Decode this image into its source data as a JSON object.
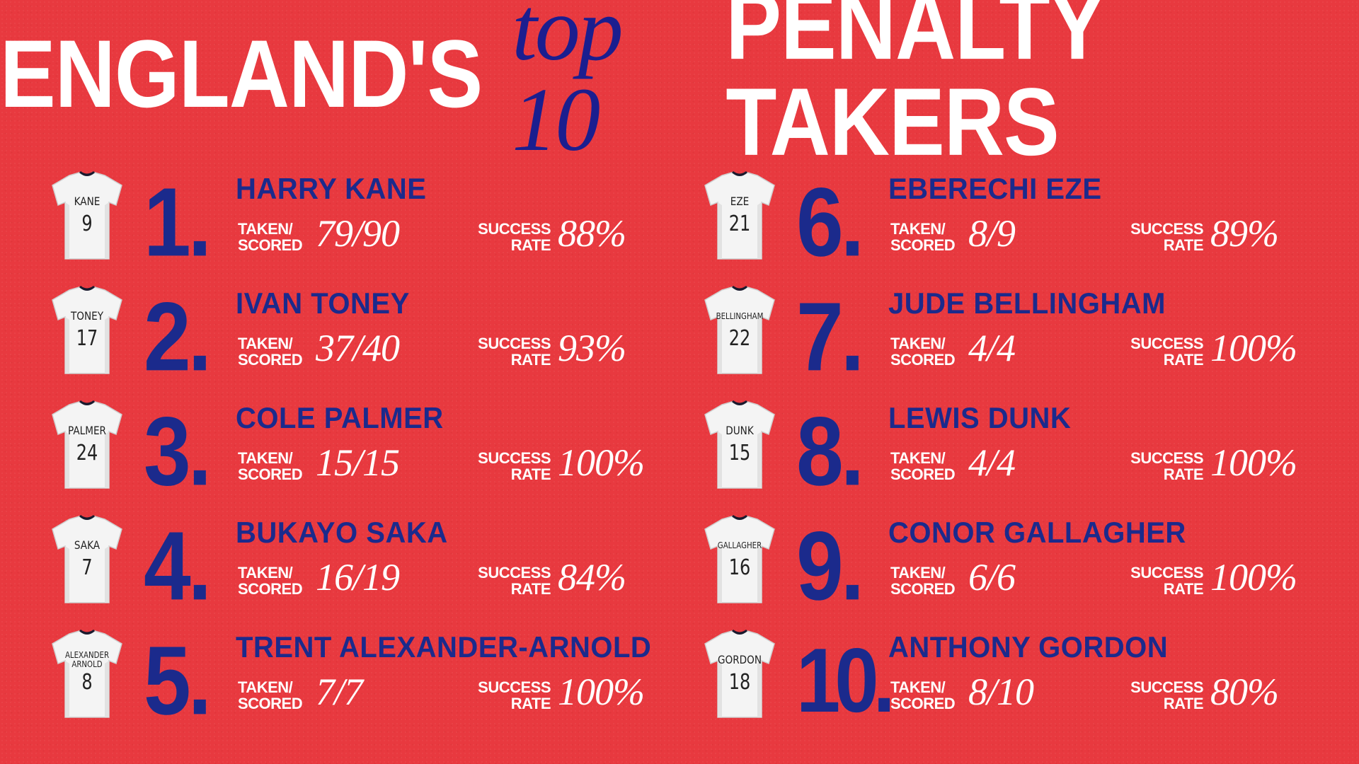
{
  "title": {
    "part1": "ENGLAND'S",
    "part2": "top 10",
    "part3": "PENALTY TAKERS"
  },
  "labels": {
    "taken_line1": "TAKEN/",
    "taken_line2": "SCORED",
    "rate_line1": "SUCCESS",
    "rate_line2": "RATE"
  },
  "players": [
    {
      "rank": "1.",
      "name": "HARRY KANE",
      "shirt_name": "KANE",
      "shirt_number": "9",
      "taken_scored": "79/90",
      "success_rate": "88%"
    },
    {
      "rank": "2.",
      "name": "IVAN TONEY",
      "shirt_name": "TONEY",
      "shirt_number": "17",
      "taken_scored": "37/40",
      "success_rate": "93%"
    },
    {
      "rank": "3.",
      "name": "COLE PALMER",
      "shirt_name": "PALMER",
      "shirt_number": "24",
      "taken_scored": "15/15",
      "success_rate": "100%"
    },
    {
      "rank": "4.",
      "name": "BUKAYO SAKA",
      "shirt_name": "SAKA",
      "shirt_number": "7",
      "taken_scored": "16/19",
      "success_rate": "84%"
    },
    {
      "rank": "5.",
      "name": "TRENT ALEXANDER-ARNOLD",
      "shirt_name": "ALEXANDER ARNOLD",
      "shirt_number": "8",
      "taken_scored": "7/7",
      "success_rate": "100%"
    },
    {
      "rank": "6.",
      "name": "EBERECHI EZE",
      "shirt_name": "EZE",
      "shirt_number": "21",
      "taken_scored": "8/9",
      "success_rate": "89%"
    },
    {
      "rank": "7.",
      "name": "JUDE BELLINGHAM",
      "shirt_name": "BELLINGHAM",
      "shirt_number": "22",
      "taken_scored": "4/4",
      "success_rate": "100%"
    },
    {
      "rank": "8.",
      "name": "LEWIS DUNK",
      "shirt_name": "DUNK",
      "shirt_number": "15",
      "taken_scored": "4/4",
      "success_rate": "100%"
    },
    {
      "rank": "9.",
      "name": "CONOR GALLAGHER",
      "shirt_name": "GALLAGHER",
      "shirt_number": "16",
      "taken_scored": "6/6",
      "success_rate": "100%"
    },
    {
      "rank": "10.",
      "name": "ANTHONY GORDON",
      "shirt_name": "GORDON",
      "shirt_number": "18",
      "taken_scored": "8/10",
      "success_rate": "80%"
    }
  ],
  "colors": {
    "background": "#e8393f",
    "navy": "#1b2a8c",
    "white": "#ffffff"
  }
}
